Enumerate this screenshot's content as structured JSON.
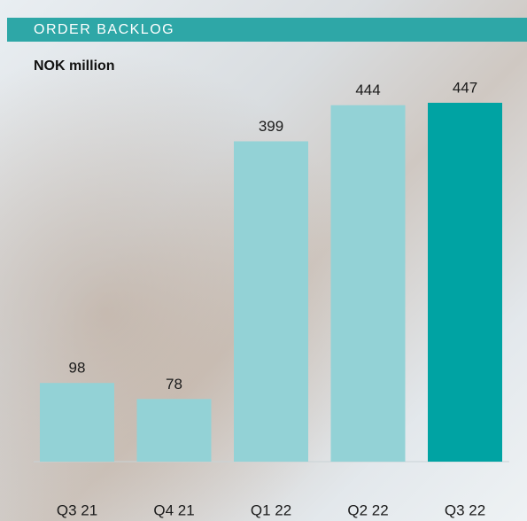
{
  "chart_data": {
    "type": "bar",
    "title": "ORDER BACKLOG",
    "subtitle": "NOK million",
    "categories": [
      "Q3 21",
      "Q4 21",
      "Q1 22",
      "Q2 22",
      "Q3 22"
    ],
    "values": [
      98,
      78,
      399,
      444,
      447
    ],
    "colors": [
      "#93d2d6",
      "#93d2d6",
      "#93d2d6",
      "#93d2d6",
      "#00a3a3"
    ]
  }
}
